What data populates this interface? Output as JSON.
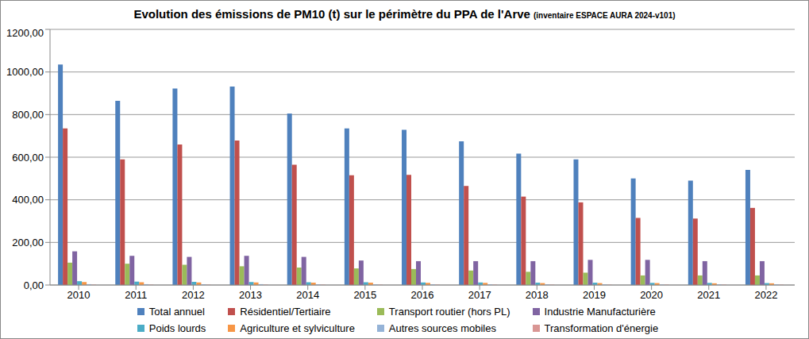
{
  "chart_data": {
    "type": "bar",
    "title": "Evolution des émissions de PM10 (t) sur le périmètre du PPA de l'Arve",
    "subtitle": "(inventaire ESPACE AURA 2024-v101)",
    "categories": [
      "2010",
      "2011",
      "2012",
      "2013",
      "2014",
      "2015",
      "2016",
      "2017",
      "2018",
      "2019",
      "2020",
      "2021",
      "2022"
    ],
    "series": [
      {
        "name": "Total annuel",
        "color": "#4f81bd",
        "values": [
          1035,
          865,
          922,
          932,
          805,
          735,
          729,
          675,
          617,
          590,
          500,
          490,
          540
        ]
      },
      {
        "name": "Résidentiel/Tertiaire",
        "color": "#c0504d",
        "values": [
          735,
          590,
          660,
          678,
          565,
          515,
          517,
          465,
          415,
          388,
          315,
          312,
          362
        ]
      },
      {
        "name": "Transport routier (hors PL)",
        "color": "#9bbb59",
        "values": [
          105,
          100,
          95,
          88,
          82,
          78,
          75,
          68,
          62,
          58,
          45,
          45,
          45
        ]
      },
      {
        "name": "Industrie Manufacturière",
        "color": "#8064a2",
        "values": [
          158,
          137,
          132,
          137,
          132,
          115,
          112,
          112,
          112,
          118,
          118,
          112,
          112
        ]
      },
      {
        "name": "Poids lourds",
        "color": "#4bacc6",
        "values": [
          18,
          16,
          15,
          14,
          13,
          13,
          12,
          12,
          11,
          11,
          10,
          10,
          9
        ]
      },
      {
        "name": "Agriculture et sylviculture",
        "color": "#f79646",
        "values": [
          14,
          13,
          12,
          12,
          11,
          11,
          10,
          10,
          9,
          9,
          9,
          8,
          8
        ]
      },
      {
        "name": "Autres sources mobiles",
        "color": "#95b3d7",
        "values": [
          4,
          4,
          4,
          4,
          3,
          3,
          3,
          3,
          3,
          3,
          2,
          3,
          3
        ]
      },
      {
        "name": "Transformation d'énergie",
        "color": "#d99694",
        "values": [
          2,
          2,
          2,
          2,
          2,
          2,
          2,
          2,
          2,
          2,
          2,
          2,
          2
        ]
      }
    ],
    "ylim": [
      0,
      1200
    ],
    "yticks": [
      {
        "value": 0,
        "label": "0,00"
      },
      {
        "value": 200,
        "label": "200,00"
      },
      {
        "value": 400,
        "label": "400,00"
      },
      {
        "value": 600,
        "label": "600,00"
      },
      {
        "value": 800,
        "label": "800,00"
      },
      {
        "value": 1000,
        "label": "1000,00"
      },
      {
        "value": 1200,
        "label": "1200,00"
      }
    ],
    "grid": true,
    "legend": "bottom"
  }
}
